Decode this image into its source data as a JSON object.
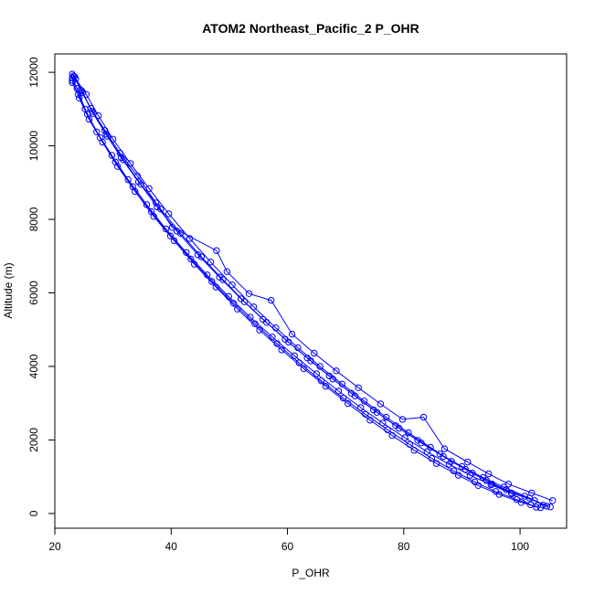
{
  "chart_data": {
    "type": "line",
    "title": "ATOM2 Northeast_Pacific_2 P_OHR",
    "xlabel": "P_OHR",
    "ylabel": "Altitude (m)",
    "xlim": [
      20,
      108
    ],
    "ylim": [
      -400,
      12500
    ],
    "x_ticks": [
      20,
      40,
      60,
      80,
      100
    ],
    "y_ticks": [
      0,
      2000,
      4000,
      6000,
      8000,
      10000,
      12000
    ],
    "grid": false,
    "legend": "none",
    "marker": "open-circle",
    "color": "#0000ff",
    "series": [
      {
        "points": [
          [
            105.2,
            180
          ],
          [
            102.5,
            350
          ],
          [
            98.5,
            560
          ],
          [
            95.2,
            800
          ],
          [
            91.8,
            1100
          ],
          [
            88.2,
            1420
          ],
          [
            84.6,
            1800
          ],
          [
            80.8,
            2200
          ],
          [
            77.0,
            2620
          ],
          [
            73.2,
            3060
          ],
          [
            69.4,
            3520
          ],
          [
            65.6,
            4000
          ],
          [
            61.8,
            4510
          ],
          [
            58.0,
            5050
          ],
          [
            54.2,
            5620
          ],
          [
            50.5,
            6220
          ],
          [
            46.8,
            6840
          ],
          [
            43.2,
            7480
          ],
          [
            39.6,
            8150
          ],
          [
            36.2,
            8840
          ],
          [
            33.0,
            9520
          ],
          [
            30.0,
            10180
          ],
          [
            27.5,
            10820
          ],
          [
            25.4,
            11400
          ],
          [
            23.6,
            11820
          ],
          [
            23.0,
            11950
          ]
        ]
      },
      {
        "points": [
          [
            104.6,
            200
          ],
          [
            101.6,
            420
          ],
          [
            97.6,
            650
          ],
          [
            94.2,
            900
          ],
          [
            90.6,
            1200
          ],
          [
            86.8,
            1550
          ],
          [
            83.0,
            1920
          ],
          [
            79.2,
            2320
          ],
          [
            75.4,
            2750
          ],
          [
            71.6,
            3200
          ],
          [
            67.8,
            3660
          ],
          [
            64.0,
            4150
          ],
          [
            60.2,
            4660
          ],
          [
            56.4,
            5200
          ],
          [
            52.6,
            5760
          ],
          [
            48.9,
            6360
          ],
          [
            45.2,
            6980
          ],
          [
            41.6,
            7620
          ],
          [
            38.2,
            8280
          ],
          [
            34.8,
            8950
          ],
          [
            31.8,
            9620
          ],
          [
            29.0,
            10260
          ],
          [
            26.6,
            10880
          ],
          [
            24.8,
            11450
          ],
          [
            23.4,
            11880
          ]
        ]
      },
      {
        "points": [
          [
            103.5,
            160
          ],
          [
            100.2,
            300
          ],
          [
            96.4,
            520
          ],
          [
            92.8,
            760
          ],
          [
            89.4,
            1040
          ],
          [
            85.6,
            1360
          ],
          [
            81.8,
            1720
          ],
          [
            78.0,
            2120
          ],
          [
            74.2,
            2540
          ],
          [
            70.4,
            2990
          ],
          [
            66.6,
            3460
          ],
          [
            62.8,
            3940
          ],
          [
            59.0,
            4450
          ],
          [
            55.2,
            4990
          ],
          [
            51.4,
            5560
          ],
          [
            47.7,
            6160
          ],
          [
            44.0,
            6780
          ],
          [
            40.5,
            7420
          ],
          [
            37.0,
            8080
          ],
          [
            33.8,
            8760
          ],
          [
            30.8,
            9440
          ],
          [
            28.2,
            10100
          ],
          [
            25.9,
            10720
          ],
          [
            24.2,
            11300
          ],
          [
            23.0,
            11780
          ]
        ]
      },
      {
        "points": [
          [
            105.6,
            350
          ],
          [
            102.0,
            560
          ],
          [
            98.0,
            800
          ],
          [
            94.6,
            1080
          ],
          [
            91.0,
            1400
          ],
          [
            87.0,
            1760
          ],
          [
            83.4,
            2620
          ],
          [
            79.8,
            2560
          ],
          [
            76.0,
            2980
          ],
          [
            72.2,
            3420
          ],
          [
            68.4,
            3880
          ],
          [
            64.6,
            4360
          ],
          [
            60.8,
            4880
          ],
          [
            57.2,
            5800
          ],
          [
            53.4,
            5980
          ],
          [
            49.6,
            6580
          ],
          [
            47.8,
            7150
          ],
          [
            40.2,
            7780
          ],
          [
            37.4,
            8450
          ],
          [
            34.2,
            9180
          ],
          [
            31.2,
            9800
          ],
          [
            28.6,
            10420
          ],
          [
            26.2,
            11020
          ],
          [
            24.4,
            11520
          ]
        ]
      },
      {
        "points": [
          [
            102.8,
            170
          ],
          [
            99.4,
            380
          ],
          [
            95.8,
            600
          ],
          [
            92.2,
            860
          ],
          [
            88.6,
            1160
          ],
          [
            84.8,
            1500
          ],
          [
            81.0,
            1880
          ],
          [
            77.2,
            2280
          ],
          [
            73.4,
            2700
          ],
          [
            69.6,
            3140
          ],
          [
            65.8,
            3610
          ],
          [
            62.0,
            4100
          ],
          [
            58.2,
            4620
          ],
          [
            54.4,
            5160
          ],
          [
            50.7,
            5720
          ],
          [
            47.0,
            6310
          ],
          [
            43.4,
            6920
          ],
          [
            39.9,
            7550
          ],
          [
            36.6,
            8210
          ],
          [
            33.4,
            8890
          ],
          [
            30.4,
            9560
          ],
          [
            27.8,
            10220
          ],
          [
            25.6,
            10860
          ],
          [
            24.0,
            11400
          ],
          [
            23.0,
            11720
          ]
        ]
      },
      {
        "points": [
          [
            104.0,
            230
          ],
          [
            100.8,
            470
          ],
          [
            97.2,
            720
          ],
          [
            93.6,
            980
          ],
          [
            90.0,
            1280
          ],
          [
            86.2,
            1620
          ],
          [
            82.4,
            1990
          ],
          [
            78.6,
            2390
          ],
          [
            74.8,
            2820
          ],
          [
            71.0,
            3270
          ],
          [
            67.2,
            3740
          ],
          [
            63.4,
            4230
          ],
          [
            59.6,
            4740
          ],
          [
            55.8,
            5280
          ],
          [
            52.0,
            5840
          ],
          [
            48.3,
            6430
          ],
          [
            44.6,
            7040
          ],
          [
            41.0,
            7680
          ],
          [
            37.6,
            8340
          ],
          [
            34.4,
            9020
          ],
          [
            31.4,
            9680
          ],
          [
            28.8,
            10320
          ],
          [
            26.4,
            10940
          ],
          [
            24.6,
            11500
          ],
          [
            23.2,
            11900
          ]
        ]
      },
      {
        "points": [
          [
            101.8,
            240
          ],
          [
            98.6,
            540
          ],
          [
            95.0,
            780
          ],
          [
            91.4,
            1040
          ],
          [
            87.8,
            1340
          ],
          [
            84.0,
            1680
          ],
          [
            80.2,
            2060
          ],
          [
            76.4,
            2460
          ],
          [
            72.6,
            2880
          ],
          [
            68.8,
            3330
          ],
          [
            65.0,
            3800
          ],
          [
            61.2,
            4290
          ],
          [
            57.4,
            4800
          ],
          [
            53.6,
            5340
          ],
          [
            49.9,
            5900
          ],
          [
            46.2,
            6490
          ],
          [
            42.6,
            7100
          ],
          [
            39.1,
            7740
          ],
          [
            35.8,
            8400
          ],
          [
            32.6,
            9080
          ],
          [
            29.8,
            9740
          ],
          [
            27.2,
            10380
          ],
          [
            25.2,
            11000
          ],
          [
            23.8,
            11560
          ],
          [
            23.0,
            11850
          ]
        ]
      }
    ]
  }
}
